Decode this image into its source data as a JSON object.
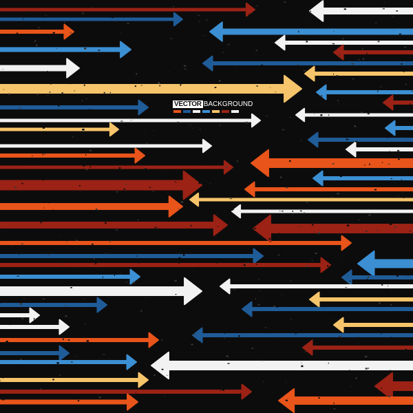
{
  "logo": {
    "word1": "VECTOR",
    "word2": "BACKGROUND"
  },
  "colors": {
    "background": "#0d0c0c",
    "red": "#9b2215",
    "blue": "#1f5c98",
    "orange": "#e8541a",
    "white": "#f2f2f2",
    "yellow": "#f6c46a",
    "lightblue": "#3b8fd2"
  },
  "swatch_order": [
    "orange",
    "blue",
    "white",
    "lightblue",
    "yellow",
    "red",
    "white"
  ]
}
